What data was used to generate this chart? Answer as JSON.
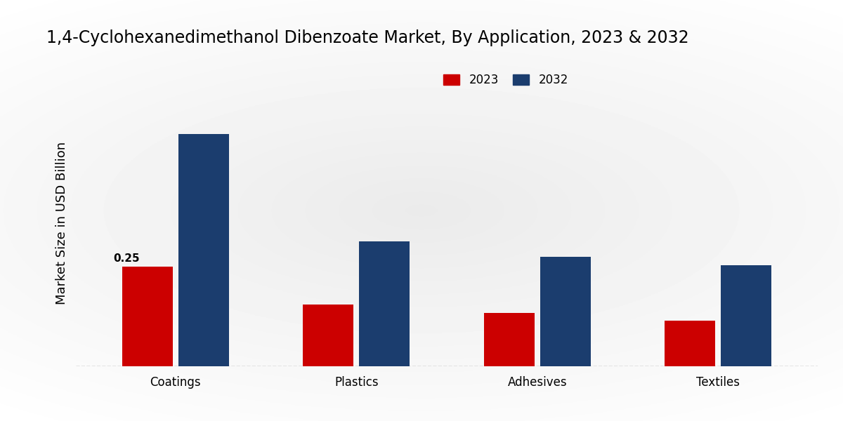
{
  "title": "1,4-Cyclohexanedimethanol Dibenzoate Market, By Application, 2023 & 2032",
  "ylabel": "Market Size in USD Billion",
  "categories": [
    "Coatings",
    "Plastics",
    "Adhesives",
    "Textiles"
  ],
  "values_2023": [
    0.25,
    0.155,
    0.135,
    0.115
  ],
  "values_2032": [
    0.585,
    0.315,
    0.275,
    0.255
  ],
  "color_2023": "#cc0000",
  "color_2032": "#1b3d6e",
  "annotation_coatings_2023": "0.25",
  "background_top": "#f0f0f0",
  "background_bottom": "#d0d0d0",
  "bar_bottom_color": "#cc0000",
  "ylim": [
    0,
    0.72
  ],
  "title_fontsize": 17,
  "axis_label_fontsize": 13,
  "tick_fontsize": 12,
  "legend_fontsize": 12,
  "annotation_fontsize": 11,
  "bar_width": 0.28,
  "bar_gap": 0.03
}
